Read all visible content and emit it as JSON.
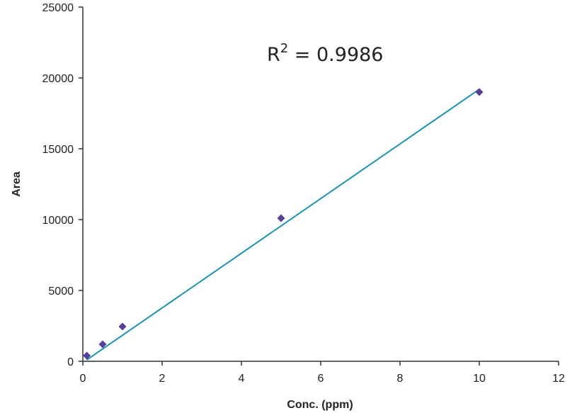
{
  "chart_data": {
    "type": "scatter",
    "title": "",
    "xlabel": "Conc. (ppm)",
    "ylabel": "Area",
    "xlim": [
      0,
      12
    ],
    "ylim": [
      0,
      25000
    ],
    "x_ticks": [
      "0",
      "2",
      "4",
      "6",
      "8",
      "10",
      "12"
    ],
    "y_ticks": [
      "0",
      "5000",
      "10000",
      "15000",
      "20000",
      "25000"
    ],
    "grid": false,
    "legend": "none",
    "series": [
      {
        "x": [
          0.1,
          0.5,
          1,
          5,
          10
        ],
        "y": [
          400,
          1200,
          2450,
          10100,
          19000
        ],
        "marker": "diamond",
        "color": "#5b3f9e"
      }
    ],
    "trendline": {
      "type": "linear",
      "x": [
        0.1,
        10
      ],
      "y": [
        100,
        19200
      ],
      "color": "#1a93b3"
    },
    "annotation": {
      "prefix": "R",
      "sup": "2",
      "suffix": " = 0.9986"
    }
  }
}
